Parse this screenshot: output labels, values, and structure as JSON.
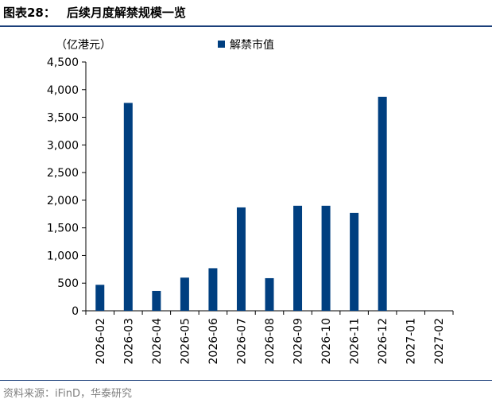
{
  "figure": {
    "label": "图表28：",
    "title": "后续月度解禁规模一览",
    "source": "资料来源：iFinD，华泰研究"
  },
  "chart_data": {
    "type": "bar",
    "unit_label": "（亿港元）",
    "categories": [
      "2026-02",
      "2026-03",
      "2026-04",
      "2026-05",
      "2026-06",
      "2026-07",
      "2026-08",
      "2026-09",
      "2026-10",
      "2026-11",
      "2026-12",
      "2027-01",
      "2027-02"
    ],
    "series": [
      {
        "name": "解禁市值",
        "color": "#003f80",
        "values": [
          470,
          3760,
          360,
          600,
          770,
          1870,
          590,
          1900,
          1900,
          1770,
          3870,
          0,
          0
        ]
      }
    ],
    "ylim": [
      0,
      4500
    ],
    "yticks": [
      0,
      500,
      1000,
      1500,
      2000,
      2500,
      3000,
      3500,
      4000,
      4500
    ],
    "ytick_labels": [
      "0",
      "500",
      "1,000",
      "1,500",
      "2,000",
      "2,500",
      "3,000",
      "3,500",
      "4,000",
      "4,500"
    ],
    "grid": false,
    "legend_position": "top-center"
  }
}
